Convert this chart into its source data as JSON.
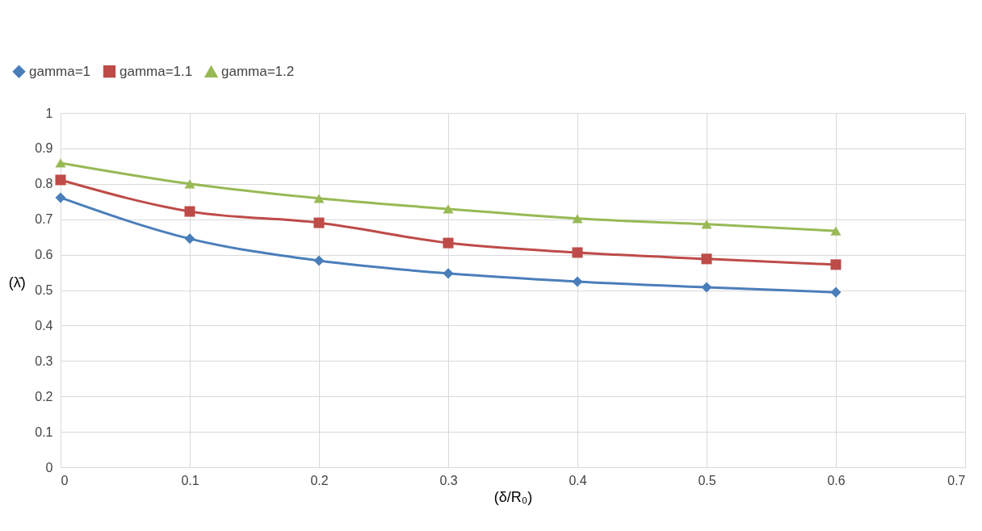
{
  "chart_data": {
    "type": "line",
    "xlabel": "(δ/R₀)",
    "ylabel": "(λ̄)",
    "x": [
      0,
      0.1,
      0.2,
      0.3,
      0.4,
      0.5,
      0.6
    ],
    "series": [
      {
        "name": "gamma=1",
        "color": "#4a7ebb",
        "marker": "diamond",
        "values": [
          0.761,
          0.645,
          0.583,
          0.547,
          0.524,
          0.508,
          0.494
        ]
      },
      {
        "name": "gamma=1.1",
        "color": "#be4b48",
        "marker": "square",
        "values": [
          0.811,
          0.722,
          0.69,
          0.633,
          0.606,
          0.588,
          0.572
        ]
      },
      {
        "name": "gamma=1.2",
        "color": "#98b954",
        "marker": "triangle",
        "values": [
          0.859,
          0.8,
          0.759,
          0.729,
          0.702,
          0.686,
          0.667
        ]
      }
    ],
    "xlim": [
      0,
      0.7
    ],
    "xticks": [
      0,
      0.1,
      0.2,
      0.3,
      0.4,
      0.5,
      0.6,
      0.7
    ],
    "ylim": [
      0,
      1
    ],
    "yticks": [
      0,
      0.1,
      0.2,
      0.3,
      0.4,
      0.5,
      0.6,
      0.7,
      0.8,
      0.9,
      1
    ],
    "grid": true,
    "legend": "top left",
    "line_style": "solid"
  }
}
